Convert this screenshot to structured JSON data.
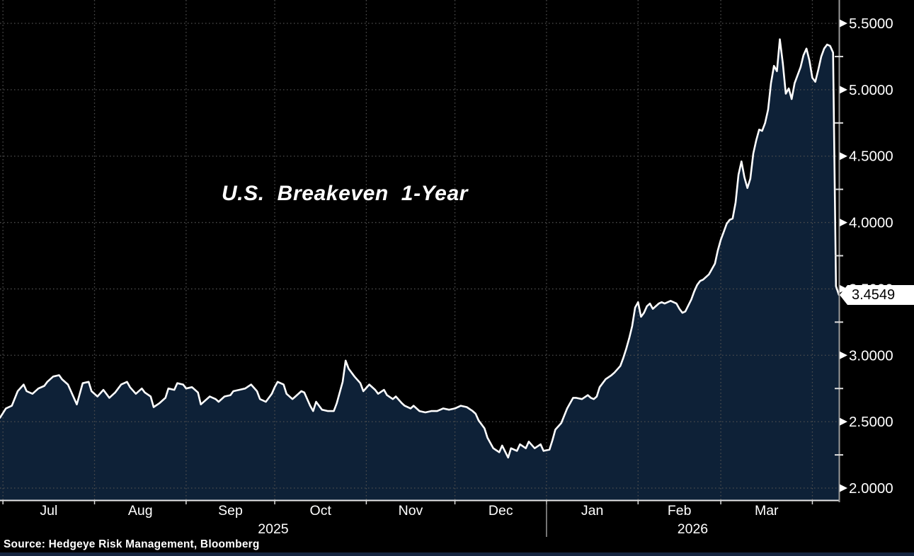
{
  "chart": {
    "title": "U.S. Breakeven 1-Year",
    "last_price_label": "3.4549"
  },
  "footer": {
    "source": "Source: Hedgeye Risk Management, Bloomberg"
  },
  "colors": {
    "background": "#000000",
    "area_fill": "#0e2137",
    "price_line": "#ffffff",
    "gridline": "#4f4f4f",
    "axis_line": "#9a9a9a",
    "x_axis_line": "#e8e8e8",
    "tick_mark": "#dddddd",
    "tick_label": "#ffffff",
    "last_price_tag_bg": "#ffffff",
    "last_price_tag_text": "#000000",
    "bottom_strip": "#152540"
  },
  "chart_data": {
    "type": "area",
    "title": "U.S. Breakeven 1-Year",
    "last_price": 3.4549,
    "legend": "none",
    "y_axis": {
      "side": "right",
      "grid": "dotted",
      "range_shown": [
        2.0,
        5.5
      ],
      "ticks": [
        {
          "value": 5.5,
          "label": "5.5000"
        },
        {
          "value": 5.0,
          "label": "5.0000"
        },
        {
          "value": 4.5,
          "label": "4.5000"
        },
        {
          "value": 4.0,
          "label": "4.0000"
        },
        {
          "value": 3.5,
          "label": "3.5000"
        },
        {
          "value": 3.0,
          "label": "3.0000"
        },
        {
          "value": 2.5,
          "label": "2.5000"
        },
        {
          "value": 2.0,
          "label": "2.0000"
        }
      ],
      "minor_tick_values": [
        5.25,
        4.75,
        4.25,
        3.75,
        3.25,
        2.75,
        2.25
      ]
    },
    "x_axis": {
      "grid": "dotted",
      "start": "2025-06-30",
      "end": "2026-04-10",
      "month_boundaries": [
        "2025-07-01",
        "2025-08-01",
        "2025-09-01",
        "2025-10-01",
        "2025-11-01",
        "2025-12-01",
        "2026-01-01",
        "2026-02-01",
        "2026-03-01",
        "2026-04-01"
      ],
      "month_labels": [
        "Jul",
        "Aug",
        "Sep",
        "Oct",
        "Nov",
        "Dec",
        "Jan",
        "Feb",
        "Mar"
      ],
      "year_labels": [
        {
          "label": "2025",
          "from": "2025-06-30",
          "to": "2026-01-01"
        },
        {
          "label": "2026",
          "from": "2026-01-01",
          "to": "2026-04-10"
        }
      ]
    },
    "series": [
      {
        "name": "U.S. Breakeven 1-Year",
        "points": [
          [
            "2025-06-30",
            2.53
          ],
          [
            "2025-07-02",
            2.6
          ],
          [
            "2025-07-04",
            2.62
          ],
          [
            "2025-07-06",
            2.73
          ],
          [
            "2025-07-08",
            2.78
          ],
          [
            "2025-07-09",
            2.73
          ],
          [
            "2025-07-11",
            2.71
          ],
          [
            "2025-07-13",
            2.75
          ],
          [
            "2025-07-15",
            2.77
          ],
          [
            "2025-07-16",
            2.8
          ],
          [
            "2025-07-18",
            2.84
          ],
          [
            "2025-07-20",
            2.85
          ],
          [
            "2025-07-21",
            2.82
          ],
          [
            "2025-07-23",
            2.78
          ],
          [
            "2025-07-26",
            2.63
          ],
          [
            "2025-07-28",
            2.79
          ],
          [
            "2025-07-30",
            2.8
          ],
          [
            "2025-07-31",
            2.73
          ],
          [
            "2025-08-02",
            2.69
          ],
          [
            "2025-08-04",
            2.74
          ],
          [
            "2025-08-06",
            2.68
          ],
          [
            "2025-08-08",
            2.72
          ],
          [
            "2025-08-10",
            2.78
          ],
          [
            "2025-08-12",
            2.8
          ],
          [
            "2025-08-13",
            2.76
          ],
          [
            "2025-08-15",
            2.71
          ],
          [
            "2025-08-17",
            2.75
          ],
          [
            "2025-08-18",
            2.72
          ],
          [
            "2025-08-20",
            2.69
          ],
          [
            "2025-08-21",
            2.61
          ],
          [
            "2025-08-23",
            2.64
          ],
          [
            "2025-08-25",
            2.68
          ],
          [
            "2025-08-26",
            2.75
          ],
          [
            "2025-08-28",
            2.74
          ],
          [
            "2025-08-29",
            2.79
          ],
          [
            "2025-08-31",
            2.78
          ],
          [
            "2025-09-01",
            2.75
          ],
          [
            "2025-09-03",
            2.76
          ],
          [
            "2025-09-05",
            2.72
          ],
          [
            "2025-09-06",
            2.63
          ],
          [
            "2025-09-08",
            2.67
          ],
          [
            "2025-09-09",
            2.69
          ],
          [
            "2025-09-11",
            2.67
          ],
          [
            "2025-09-12",
            2.65
          ],
          [
            "2025-09-14",
            2.69
          ],
          [
            "2025-09-16",
            2.7
          ],
          [
            "2025-09-17",
            2.73
          ],
          [
            "2025-09-19",
            2.74
          ],
          [
            "2025-09-21",
            2.75
          ],
          [
            "2025-09-23",
            2.78
          ],
          [
            "2025-09-25",
            2.73
          ],
          [
            "2025-09-26",
            2.67
          ],
          [
            "2025-09-28",
            2.65
          ],
          [
            "2025-09-30",
            2.71
          ],
          [
            "2025-10-01",
            2.76
          ],
          [
            "2025-10-02",
            2.8
          ],
          [
            "2025-10-04",
            2.78
          ],
          [
            "2025-10-05",
            2.71
          ],
          [
            "2025-10-07",
            2.67
          ],
          [
            "2025-10-08",
            2.69
          ],
          [
            "2025-10-10",
            2.73
          ],
          [
            "2025-10-11",
            2.72
          ],
          [
            "2025-10-13",
            2.62
          ],
          [
            "2025-10-14",
            2.58
          ],
          [
            "2025-10-15",
            2.65
          ],
          [
            "2025-10-17",
            2.59
          ],
          [
            "2025-10-19",
            2.58
          ],
          [
            "2025-10-21",
            2.58
          ],
          [
            "2025-10-22",
            2.64
          ],
          [
            "2025-10-24",
            2.8
          ],
          [
            "2025-10-25",
            2.96
          ],
          [
            "2025-10-26",
            2.9
          ],
          [
            "2025-10-28",
            2.84
          ],
          [
            "2025-10-30",
            2.79
          ],
          [
            "2025-10-31",
            2.73
          ],
          [
            "2025-11-02",
            2.78
          ],
          [
            "2025-11-04",
            2.74
          ],
          [
            "2025-11-05",
            2.71
          ],
          [
            "2025-11-07",
            2.74
          ],
          [
            "2025-11-08",
            2.7
          ],
          [
            "2025-11-10",
            2.67
          ],
          [
            "2025-11-11",
            2.69
          ],
          [
            "2025-11-13",
            2.64
          ],
          [
            "2025-11-14",
            2.62
          ],
          [
            "2025-11-16",
            2.6
          ],
          [
            "2025-11-17",
            2.62
          ],
          [
            "2025-11-19",
            2.58
          ],
          [
            "2025-11-21",
            2.57
          ],
          [
            "2025-11-23",
            2.58
          ],
          [
            "2025-11-25",
            2.58
          ],
          [
            "2025-11-27",
            2.6
          ],
          [
            "2025-11-29",
            2.59
          ],
          [
            "2025-12-01",
            2.6
          ],
          [
            "2025-12-03",
            2.62
          ],
          [
            "2025-12-05",
            2.61
          ],
          [
            "2025-12-07",
            2.58
          ],
          [
            "2025-12-08",
            2.56
          ],
          [
            "2025-12-09",
            2.51
          ],
          [
            "2025-12-11",
            2.45
          ],
          [
            "2025-12-12",
            2.38
          ],
          [
            "2025-12-14",
            2.3
          ],
          [
            "2025-12-16",
            2.27
          ],
          [
            "2025-12-17",
            2.32
          ],
          [
            "2025-12-19",
            2.23
          ],
          [
            "2025-12-20",
            2.3
          ],
          [
            "2025-12-22",
            2.28
          ],
          [
            "2025-12-23",
            2.33
          ],
          [
            "2025-12-25",
            2.3
          ],
          [
            "2025-12-26",
            2.35
          ],
          [
            "2025-12-28",
            2.3
          ],
          [
            "2025-12-30",
            2.33
          ],
          [
            "2025-12-31",
            2.28
          ],
          [
            "2026-01-02",
            2.29
          ],
          [
            "2026-01-03",
            2.36
          ],
          [
            "2026-01-04",
            2.44
          ],
          [
            "2026-01-06",
            2.49
          ],
          [
            "2026-01-08",
            2.6
          ],
          [
            "2026-01-10",
            2.68
          ],
          [
            "2026-01-11",
            2.68
          ],
          [
            "2026-01-13",
            2.67
          ],
          [
            "2026-01-15",
            2.7
          ],
          [
            "2026-01-16",
            2.68
          ],
          [
            "2026-01-17",
            2.67
          ],
          [
            "2026-01-18",
            2.69
          ],
          [
            "2026-01-19",
            2.76
          ],
          [
            "2026-01-21",
            2.82
          ],
          [
            "2026-01-23",
            2.85
          ],
          [
            "2026-01-24",
            2.87
          ],
          [
            "2026-01-26",
            2.92
          ],
          [
            "2026-01-27",
            2.98
          ],
          [
            "2026-01-28",
            3.05
          ],
          [
            "2026-01-29",
            3.13
          ],
          [
            "2026-01-30",
            3.22
          ],
          [
            "2026-01-31",
            3.36
          ],
          [
            "2026-02-01",
            3.4
          ],
          [
            "2026-02-02",
            3.29
          ],
          [
            "2026-02-03",
            3.32
          ],
          [
            "2026-02-04",
            3.37
          ],
          [
            "2026-02-05",
            3.39
          ],
          [
            "2026-02-06",
            3.35
          ],
          [
            "2026-02-08",
            3.39
          ],
          [
            "2026-02-09",
            3.4
          ],
          [
            "2026-02-10",
            3.39
          ],
          [
            "2026-02-11",
            3.4
          ],
          [
            "2026-02-12",
            3.41
          ],
          [
            "2026-02-14",
            3.39
          ],
          [
            "2026-02-15",
            3.35
          ],
          [
            "2026-02-16",
            3.32
          ],
          [
            "2026-02-17",
            3.33
          ],
          [
            "2026-02-19",
            3.42
          ],
          [
            "2026-02-20",
            3.48
          ],
          [
            "2026-02-21",
            3.53
          ],
          [
            "2026-02-22",
            3.56
          ],
          [
            "2026-02-23",
            3.57
          ],
          [
            "2026-02-25",
            3.61
          ],
          [
            "2026-02-26",
            3.65
          ],
          [
            "2026-02-27",
            3.69
          ],
          [
            "2026-02-28",
            3.79
          ],
          [
            "2026-03-01",
            3.87
          ],
          [
            "2026-03-02",
            3.93
          ],
          [
            "2026-03-03",
            3.99
          ],
          [
            "2026-03-04",
            4.02
          ],
          [
            "2026-03-05",
            4.03
          ],
          [
            "2026-03-06",
            4.15
          ],
          [
            "2026-03-07",
            4.36
          ],
          [
            "2026-03-08",
            4.46
          ],
          [
            "2026-03-09",
            4.34
          ],
          [
            "2026-03-10",
            4.26
          ],
          [
            "2026-03-11",
            4.33
          ],
          [
            "2026-03-12",
            4.52
          ],
          [
            "2026-03-13",
            4.62
          ],
          [
            "2026-03-14",
            4.7
          ],
          [
            "2026-03-15",
            4.69
          ],
          [
            "2026-03-16",
            4.75
          ],
          [
            "2026-03-17",
            4.85
          ],
          [
            "2026-03-18",
            5.05
          ],
          [
            "2026-03-19",
            5.18
          ],
          [
            "2026-03-20",
            5.14
          ],
          [
            "2026-03-21",
            5.38
          ],
          [
            "2026-03-22",
            5.2
          ],
          [
            "2026-03-23",
            4.97
          ],
          [
            "2026-03-24",
            5.01
          ],
          [
            "2026-03-25",
            4.93
          ],
          [
            "2026-03-26",
            5.05
          ],
          [
            "2026-03-27",
            5.11
          ],
          [
            "2026-03-28",
            5.17
          ],
          [
            "2026-03-29",
            5.26
          ],
          [
            "2026-03-30",
            5.31
          ],
          [
            "2026-03-31",
            5.22
          ],
          [
            "2026-04-01",
            5.09
          ],
          [
            "2026-04-02",
            5.06
          ],
          [
            "2026-04-03",
            5.15
          ],
          [
            "2026-04-04",
            5.25
          ],
          [
            "2026-04-05",
            5.31
          ],
          [
            "2026-04-06",
            5.34
          ],
          [
            "2026-04-07",
            5.33
          ],
          [
            "2026-04-08",
            5.28
          ],
          [
            "2026-04-09",
            3.52
          ],
          [
            "2026-04-10",
            3.4549
          ]
        ]
      }
    ]
  }
}
